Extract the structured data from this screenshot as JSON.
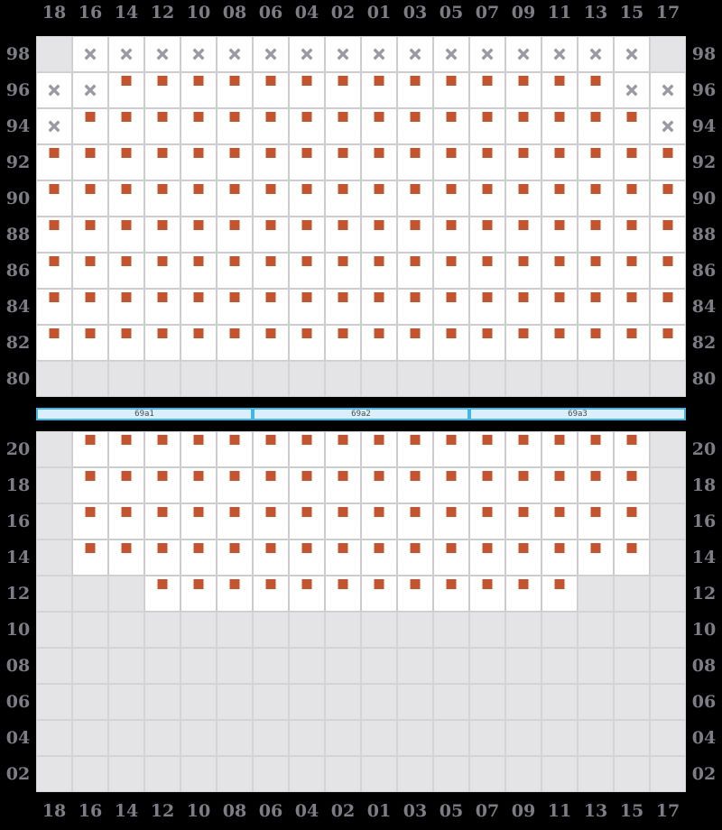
{
  "colors": {
    "bg": "#000000",
    "cell_bg": "#ffffff",
    "cell_border": "#cccccc",
    "disabled_bg": "#e4e4e6",
    "disabled_border": "#d4d4d6",
    "seat": "#c5532e",
    "xmark": "#9a9aa0",
    "label": "#7d7d85",
    "aisle_bg": "#dceefa",
    "aisle_border": "#41b6e8",
    "aisle_text": "#4a4a4a"
  },
  "cell_states": {
    "S": "seat-marker-square",
    "X": "x-mark",
    "D": "blocked-empty"
  },
  "columns": [
    "18",
    "16",
    "14",
    "12",
    "10",
    "08",
    "06",
    "04",
    "02",
    "01",
    "03",
    "05",
    "07",
    "09",
    "11",
    "13",
    "15",
    "17"
  ],
  "top_grid": {
    "rows": [
      {
        "label": "98",
        "cells": "DXXXXXXXXXXXXXXXXD"
      },
      {
        "label": "96",
        "cells": "XXSSSSSSSSSSSSSSXX"
      },
      {
        "label": "94",
        "cells": "XSSSSSSSSSSSSSSSSX"
      },
      {
        "label": "92",
        "cells": "SSSSSSSSSSSSSSSSSS"
      },
      {
        "label": "90",
        "cells": "SSSSSSSSSSSSSSSSSS"
      },
      {
        "label": "88",
        "cells": "SSSSSSSSSSSSSSSSSS"
      },
      {
        "label": "86",
        "cells": "SSSSSSSSSSSSSSSSSS"
      },
      {
        "label": "84",
        "cells": "SSSSSSSSSSSSSSSSSS"
      },
      {
        "label": "82",
        "cells": "SSSSSSSSSSSSSSSSSS"
      },
      {
        "label": "80",
        "cells": "DDDDDDDDDDDDDDDDDD"
      }
    ]
  },
  "aisle": {
    "sections": [
      "69a1",
      "69a2",
      "69a3"
    ]
  },
  "bottom_grid": {
    "rows": [
      {
        "label": "20",
        "cells": "DSSSSSSSSSSSSSSSSD"
      },
      {
        "label": "18",
        "cells": "DSSSSSSSSSSSSSSSSD"
      },
      {
        "label": "16",
        "cells": "DSSSSSSSSSSSSSSSSD"
      },
      {
        "label": "14",
        "cells": "DSSSSSSSSSSSSSSSSD"
      },
      {
        "label": "12",
        "cells": "DDDSSSSSSSSSSSSDDD"
      },
      {
        "label": "10",
        "cells": "DDDDDDDDDDDDDDDDDD"
      },
      {
        "label": "08",
        "cells": "DDDDDDDDDDDDDDDDDD"
      },
      {
        "label": "06",
        "cells": "DDDDDDDDDDDDDDDDDD"
      },
      {
        "label": "04",
        "cells": "DDDDDDDDDDDDDDDDDD"
      },
      {
        "label": "02",
        "cells": "DDDDDDDDDDDDDDDDDD"
      }
    ]
  }
}
